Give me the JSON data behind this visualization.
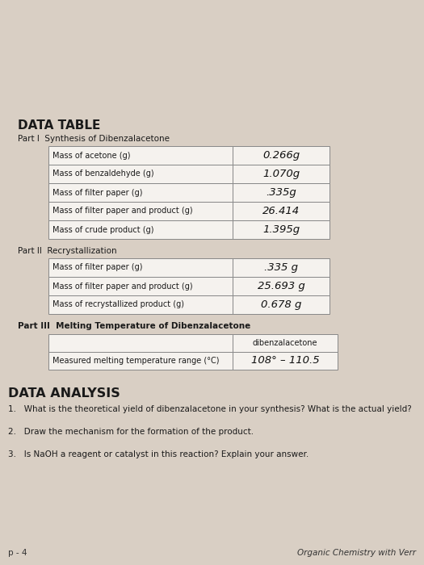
{
  "bg_color": "#d9cfc4",
  "title": "DATA TABLE",
  "part1_label": "Part I  Synthesis of Dibenzalacetone",
  "part1_rows": [
    [
      "Mass of acetone (g)",
      "0.266g"
    ],
    [
      "Mass of benzaldehyde (g)",
      "1.070g"
    ],
    [
      "Mass of filter paper (g)",
      ".335g"
    ],
    [
      "Mass of filter paper and product (g)",
      "26.414"
    ],
    [
      "Mass of crude product (g)",
      "1.395g"
    ]
  ],
  "part2_label": "Part II  Recrystallization",
  "part2_rows": [
    [
      "Mass of filter paper (g)",
      ".335 g"
    ],
    [
      "Mass of filter paper and product (g)",
      "25.693 g"
    ],
    [
      "Mass of recrystallized product (g)",
      "0.678 g"
    ]
  ],
  "part3_label": "Part III  Melting Temperature of Dibenzalacetone",
  "part3_col_header": "dibenzalacetone",
  "part3_row_label": "Measured melting temperature range (°C)",
  "part3_row_value": "108° – 110.5",
  "analysis_title": "DATA ANALYSIS",
  "analysis_q1": "1.   What is the theoretical yield of dibenzalacetone in your synthesis? What is the actual yield?",
  "analysis_q2": "2.   Draw the mechanism for the formation of the product.",
  "analysis_q3": "3.   Is NaOH a reagent or catalyst in this reaction? Explain your answer.",
  "footer_left": "p - 4",
  "footer_right": "Organic Chemistry with Verr",
  "table_bg": "#f5f2ee",
  "border_color": "#888888",
  "text_color": "#1a1a1a",
  "hand_color": "#111111"
}
